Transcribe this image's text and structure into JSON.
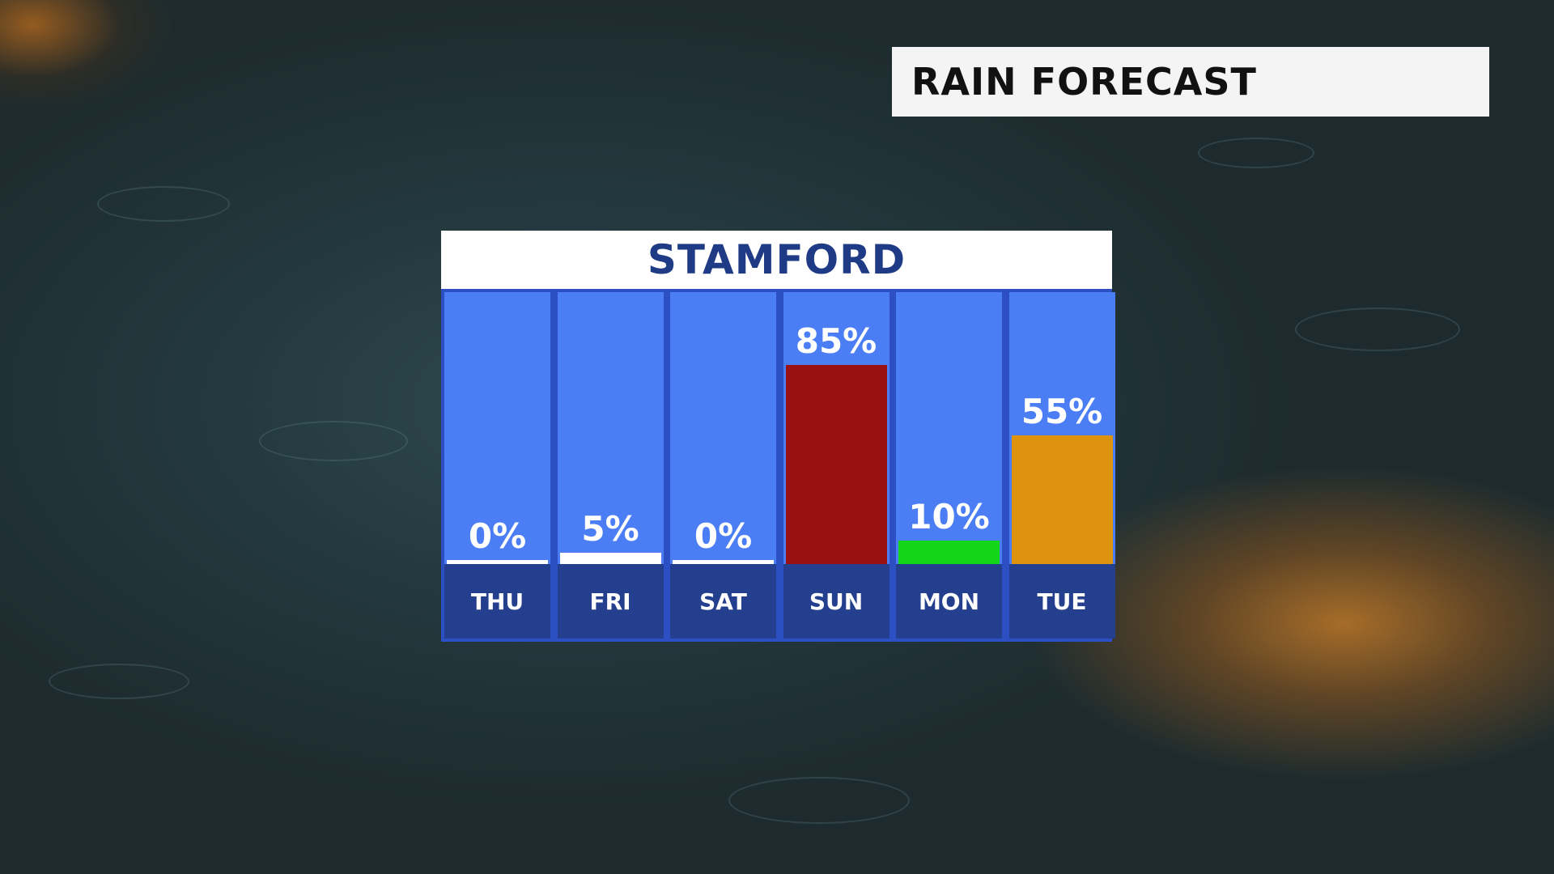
{
  "header": {
    "title": "RAIN FORECAST"
  },
  "chart_data": {
    "type": "bar",
    "title": "STAMFORD",
    "categories": [
      "THU",
      "FRI",
      "SAT",
      "SUN",
      "MON",
      "TUE"
    ],
    "values": [
      0,
      5,
      0,
      85,
      10,
      55
    ],
    "value_labels": [
      "0%",
      "5%",
      "0%",
      "85%",
      "10%",
      "55%"
    ],
    "bar_colors": [
      "#ffffff",
      "#ffffff",
      "#ffffff",
      "#9b1111",
      "#13d61a",
      "#dd9210"
    ],
    "ylim": [
      0,
      100
    ],
    "grid": false,
    "legend": "none"
  },
  "colors": {
    "column_bg": "#4b7df5",
    "footer_bg": "#233f8d",
    "title_text": "#1f3b86"
  }
}
